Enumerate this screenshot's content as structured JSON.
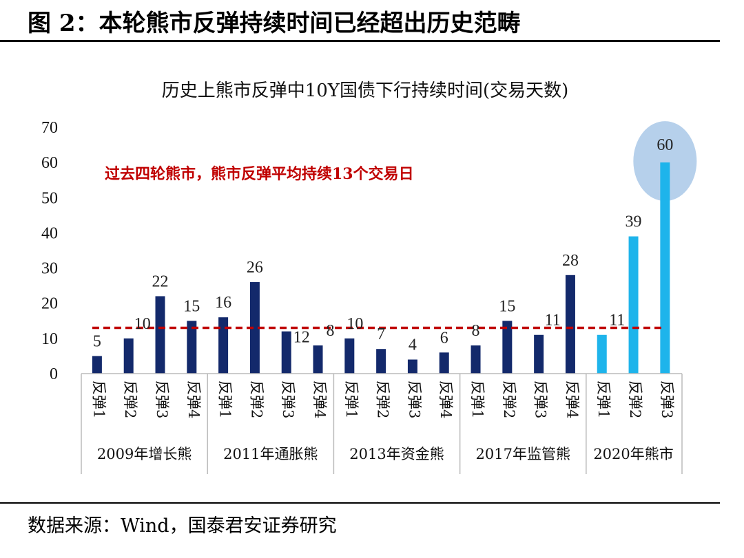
{
  "figure_title": "图 2：本轮熊市反弹持续时间已经超出历史范畴",
  "source": "数据来源：Wind，国泰君安证券研究",
  "chart_data": {
    "type": "bar",
    "title": "历史上熊市反弹中10Y国债下行持续时间(交易天数)",
    "ylim": [
      0,
      70
    ],
    "yticks": [
      0,
      10,
      20,
      30,
      40,
      50,
      60,
      70
    ],
    "categories": [
      "反弹1",
      "反弹2",
      "反弹3",
      "反弹4",
      "反弹1",
      "反弹2",
      "反弹3",
      "反弹4",
      "反弹1",
      "反弹2",
      "反弹3",
      "反弹4",
      "反弹1",
      "反弹2",
      "反弹3",
      "反弹4",
      "反弹1",
      "反弹2",
      "反弹3"
    ],
    "groups": [
      {
        "label": "2009年增长熊",
        "count": 4
      },
      {
        "label": "2011年通胀熊",
        "count": 4
      },
      {
        "label": "2013年资金熊",
        "count": 4
      },
      {
        "label": "2017年监管熊",
        "count": 4
      },
      {
        "label": "2020年熊市",
        "count": 3
      }
    ],
    "values": [
      5,
      10,
      22,
      15,
      16,
      26,
      12,
      8,
      10,
      7,
      4,
      6,
      8,
      15,
      11,
      28,
      11,
      39,
      60
    ],
    "bar_colors": [
      "#13296b",
      "#13296b",
      "#13296b",
      "#13296b",
      "#13296b",
      "#13296b",
      "#13296b",
      "#13296b",
      "#13296b",
      "#13296b",
      "#13296b",
      "#13296b",
      "#13296b",
      "#13296b",
      "#13296b",
      "#13296b",
      "#1eb4eb",
      "#1eb4eb",
      "#1eb4eb"
    ],
    "reference_line": {
      "value": 13,
      "color": "#c00000"
    },
    "annotation": {
      "text": "过去四轮熊市，熊市反弹平均持续13个交易日",
      "color": "#c00000"
    },
    "highlight_index": 18,
    "highlight_color": "#a9c8e8",
    "grid": false
  }
}
